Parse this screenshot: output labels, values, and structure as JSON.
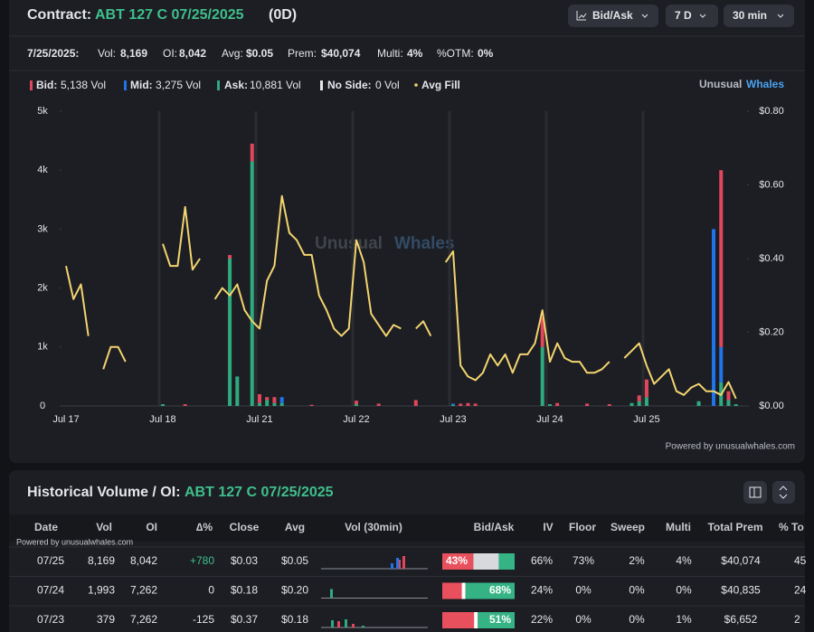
{
  "header": {
    "label": "Contract:",
    "contract": "ABT 127 C 07/25/2025",
    "dte": "(0D)",
    "buttons": [
      "Bid/Ask",
      "7 D",
      "30 min"
    ]
  },
  "stats": [
    {
      "label": "7/25/2025:",
      "value": ""
    },
    {
      "label": "Vol:",
      "value": "8,169"
    },
    {
      "label": "OI:",
      "value": "8,042"
    },
    {
      "label": "Avg:",
      "value": "$0.05"
    },
    {
      "label": "Prem:",
      "value": "$40,074"
    },
    {
      "label": "Multi:",
      "value": "4%"
    },
    {
      "label": "%OTM:",
      "value": "0%"
    }
  ],
  "legend": [
    {
      "label": "Bid:",
      "volume": "5,138 Vol",
      "color": "#e0475b"
    },
    {
      "label": "Mid:",
      "volume": "3,275 Vol",
      "color": "#1f74e8"
    },
    {
      "label": "Ask:",
      "volume": "10,881 Vol",
      "color": "#2faa7f"
    },
    {
      "label": "No Side:",
      "volume": "0 Vol",
      "color": "#e6e6e6"
    },
    {
      "label": "Avg Fill",
      "color": "#f3d46f"
    }
  ],
  "brand": [
    "Unusual",
    "Whales"
  ],
  "watermark": [
    "Unusual",
    "Whales"
  ],
  "powered": "Powered by unusualwhales.com",
  "chart_data": {
    "type": "bar-line",
    "categories": [
      "Jul 17",
      null,
      null,
      null,
      null,
      null,
      null,
      null,
      null,
      null,
      null,
      null,
      null,
      "Jul 18",
      null,
      null,
      null,
      null,
      null,
      null,
      null,
      null,
      null,
      null,
      null,
      null,
      "Jul 21",
      null,
      null,
      null,
      null,
      null,
      null,
      null,
      null,
      null,
      null,
      null,
      null,
      "Jul 22",
      null,
      null,
      null,
      null,
      null,
      null,
      null,
      null,
      null,
      null,
      null,
      null,
      "Jul 23",
      null,
      null,
      null,
      null,
      null,
      null,
      null,
      null,
      null,
      null,
      null,
      null,
      "Jul 24",
      null,
      null,
      null,
      null,
      null,
      null,
      null,
      null,
      null,
      null,
      null,
      null,
      "Jul 25",
      null,
      null,
      null,
      null,
      null,
      null,
      null,
      null,
      null,
      null,
      null,
      null
    ],
    "series": [
      {
        "name": "Bid:",
        "color": "#e0475b",
        "values": [
          0,
          0,
          0,
          0,
          0,
          0,
          0,
          0,
          0,
          0,
          0,
          0,
          0,
          0,
          0,
          0,
          30,
          0,
          0,
          0,
          0,
          0,
          60,
          0,
          0,
          300,
          150,
          50,
          100,
          0,
          0,
          0,
          0,
          20,
          0,
          0,
          0,
          0,
          0,
          60,
          0,
          0,
          40,
          0,
          0,
          0,
          0,
          100,
          0,
          0,
          0,
          0,
          0,
          40,
          50,
          40,
          0,
          0,
          0,
          0,
          0,
          0,
          0,
          0,
          500,
          0,
          50,
          0,
          0,
          0,
          40,
          0,
          0,
          30,
          0,
          0,
          0,
          100,
          300,
          0,
          0,
          0,
          0,
          0,
          0,
          0,
          0,
          0,
          3000,
          150,
          0
        ]
      },
      {
        "name": "Mid:",
        "color": "#1f74e8",
        "values": [
          0,
          0,
          0,
          0,
          0,
          0,
          0,
          0,
          0,
          0,
          0,
          0,
          0,
          0,
          0,
          0,
          0,
          0,
          0,
          0,
          0,
          0,
          0,
          0,
          0,
          0,
          0,
          0,
          0,
          100,
          0,
          0,
          0,
          0,
          0,
          0,
          0,
          0,
          0,
          0,
          0,
          0,
          0,
          0,
          0,
          0,
          0,
          0,
          0,
          0,
          0,
          0,
          20,
          0,
          0,
          0,
          0,
          0,
          0,
          0,
          0,
          0,
          0,
          0,
          0,
          0,
          0,
          0,
          0,
          0,
          0,
          0,
          0,
          0,
          0,
          0,
          0,
          0,
          0,
          0,
          0,
          0,
          0,
          0,
          0,
          0,
          0,
          3000,
          600,
          0,
          0
        ]
      },
      {
        "name": "Ask:",
        "color": "#2faa7f",
        "values": [
          0,
          0,
          0,
          0,
          0,
          0,
          0,
          0,
          0,
          0,
          0,
          0,
          0,
          30,
          0,
          0,
          0,
          0,
          0,
          0,
          0,
          0,
          2500,
          500,
          0,
          4150,
          50,
          100,
          50,
          50,
          0,
          0,
          0,
          0,
          0,
          0,
          0,
          0,
          0,
          30,
          0,
          0,
          0,
          0,
          0,
          0,
          0,
          0,
          0,
          0,
          0,
          0,
          20,
          0,
          0,
          0,
          0,
          0,
          0,
          0,
          0,
          0,
          0,
          0,
          1000,
          30,
          0,
          0,
          0,
          0,
          0,
          0,
          0,
          0,
          0,
          0,
          50,
          80,
          150,
          0,
          0,
          0,
          0,
          0,
          0,
          80,
          0,
          0,
          400,
          100,
          30
        ]
      },
      {
        "name": "Avg Fill",
        "color": "#f3d46f",
        "axis": "y2",
        "values": [
          0.38,
          0.29,
          0.33,
          0.19,
          null,
          0.1,
          0.16,
          0.16,
          0.12,
          null,
          null,
          null,
          null,
          0.44,
          0.38,
          0.38,
          0.54,
          0.37,
          0.4,
          null,
          0.29,
          0.32,
          0.3,
          0.33,
          0.26,
          0.23,
          0.21,
          0.34,
          0.38,
          0.57,
          0.47,
          0.45,
          0.41,
          0.41,
          0.3,
          0.26,
          0.21,
          0.19,
          0.21,
          0.45,
          0.39,
          0.25,
          0.22,
          0.19,
          0.22,
          0.21,
          null,
          0.21,
          0.23,
          0.19,
          null,
          0.39,
          0.42,
          0.11,
          0.08,
          0.07,
          0.09,
          0.14,
          0.11,
          0.14,
          0.09,
          0.14,
          0.14,
          0.17,
          0.26,
          0.12,
          0.17,
          0.13,
          0.12,
          0.12,
          0.09,
          0.09,
          0.1,
          0.12,
          null,
          0.13,
          0.15,
          0.17,
          0.11,
          0.06,
          0.08,
          0.1,
          0.04,
          0.03,
          0.05,
          0.06,
          0.04,
          0.04,
          0.03,
          0.065,
          0.02
        ]
      }
    ],
    "ylim": [
      0,
      5000
    ],
    "yticks": [
      0,
      {
        "value": 1000,
        "label": "1k"
      },
      {
        "value": 2000,
        "label": "2k"
      },
      {
        "value": 3000,
        "label": "3k"
      },
      {
        "value": 4000,
        "label": "4k"
      },
      {
        "value": 5000,
        "label": "5k"
      }
    ],
    "y2lim": [
      0,
      0.8
    ],
    "y2ticks": [
      {
        "value": 0,
        "label": "$0.00"
      },
      {
        "value": 0.2,
        "label": "$0.20"
      },
      {
        "value": 0.4,
        "label": "$0.40"
      },
      {
        "value": 0.6,
        "label": "$0.60"
      },
      {
        "value": 0.8,
        "label": "$0.80"
      }
    ],
    "xgrid": true,
    "stacked": true
  },
  "section": {
    "title": "Historical Volume / OI:",
    "contract": "ABT 127 C 07/25/2025"
  },
  "table": {
    "columns": [
      "Date",
      "Vol",
      "OI",
      "∆%",
      "Close",
      "Avg",
      "Vol (30min)",
      "Bid/Ask",
      "IV",
      "Floor",
      "Sweep",
      "Multi",
      "Total Prem",
      "% To"
    ],
    "rows": [
      {
        "cells": [
          "07/25",
          "8,169",
          "8,042",
          "+780",
          "$0.03",
          "$0.05",
          "66%",
          "73%",
          "2%",
          "4%",
          "$40,074",
          "45"
        ],
        "bid_ask": {
          "side": "bid",
          "value": 43,
          "label": "43%"
        }
      },
      {
        "cells": [
          "07/24",
          "1,993",
          "7,262",
          "0",
          "$0.18",
          "$0.20",
          "24%",
          "0%",
          "0%",
          "0%",
          "$40,835",
          "24"
        ],
        "bid_ask": {
          "side": "ask",
          "value": 68,
          "label": "68%"
        }
      },
      {
        "cells": [
          "07/23",
          "379",
          "7,262",
          "-125",
          "$0.37",
          "$0.18",
          "22%",
          "0%",
          "0%",
          "1%",
          "$6,652",
          "2"
        ],
        "bid_ask": {
          "side": "ask",
          "value": 51,
          "label": "51%"
        }
      }
    ]
  }
}
